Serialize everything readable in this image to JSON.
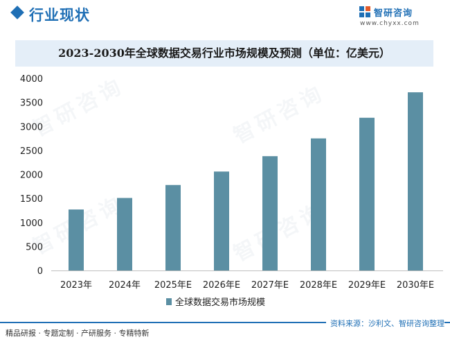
{
  "header": {
    "section_title": "行业现状",
    "logo_name": "智研咨询",
    "logo_url": "www.chyxx.com",
    "watermark_text": "智研咨询"
  },
  "colors": {
    "accent": "#1f6fb5",
    "bar": "#5b8fa3",
    "title_band": "#e4eef8"
  },
  "chart_data": {
    "type": "bar",
    "title": "2023-2030年全球数据交易行业市场规模及预测（单位：亿美元）",
    "categories": [
      "2023年",
      "2024年",
      "2025年E",
      "2026年E",
      "2027年E",
      "2028年E",
      "2029年E",
      "2030年E"
    ],
    "series": [
      {
        "name": "全球数据交易市场规模",
        "values": [
          1270,
          1510,
          1780,
          2060,
          2380,
          2750,
          3180,
          3710
        ]
      }
    ],
    "xlabel": "",
    "ylabel": "",
    "ylim": [
      0,
      4000
    ],
    "yticks": [
      0,
      500,
      1000,
      1500,
      2000,
      2500,
      3000,
      3500,
      4000
    ],
    "grid": false,
    "legend": "bottom-center"
  },
  "footer": {
    "left": "精品研报 · 专题定制 · 产研服务 · 专精特新",
    "right": "资料来源：沙利文、智研咨询整理"
  }
}
